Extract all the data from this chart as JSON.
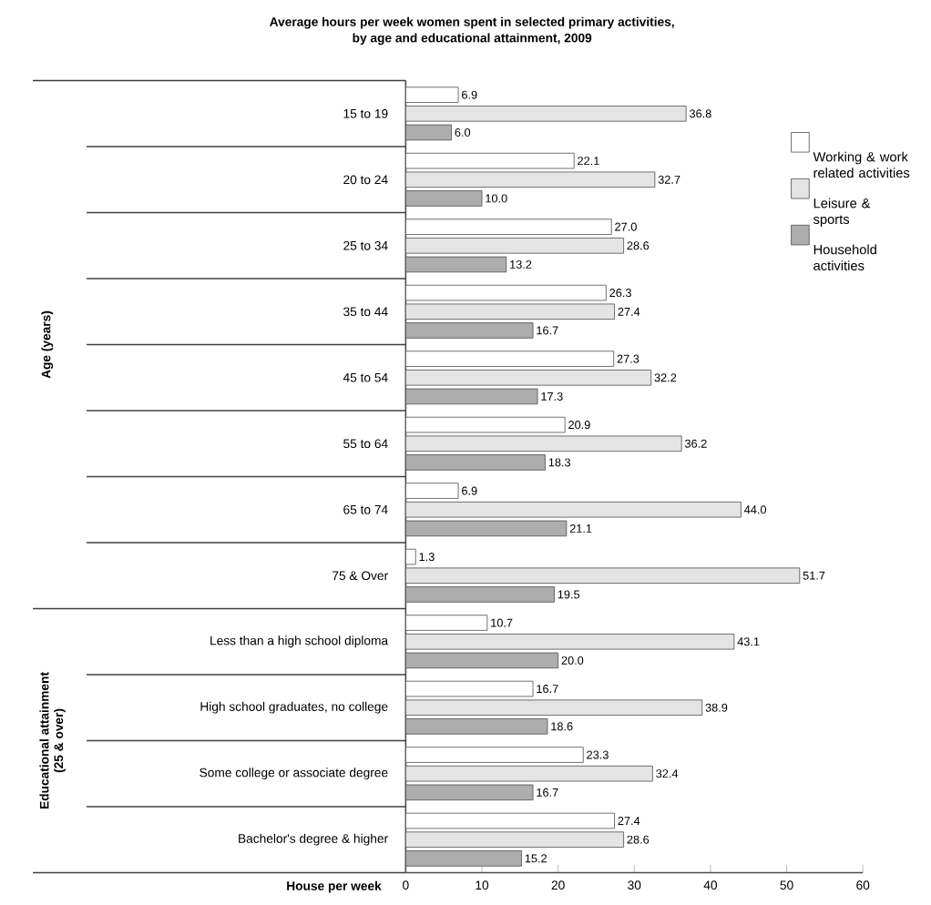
{
  "chart_data": {
    "type": "bar",
    "orientation": "horizontal",
    "title": "Average hours per week women spent in selected primary activities,\nby age and educational attainment, 2009",
    "xlabel": "House per week",
    "categories": [
      "15 to 19",
      "20 to 24",
      "25 to 34",
      "35 to 44",
      "45 to 54",
      "55 to 64",
      "65 to 74",
      "75 & Over",
      "Less than a high school diploma",
      "High school graduates, no college",
      "Some college or associate degree",
      "Bachelor's degree & higher"
    ],
    "annotations": [
      "Age (years)",
      "Educational attainment\n(25 & over)"
    ],
    "series": [
      {
        "name": "Working & work related activities",
        "color": "#ffffff",
        "values": [
          6.9,
          22.1,
          27.0,
          26.3,
          27.3,
          20.9,
          6.9,
          1.3,
          10.7,
          16.7,
          23.3,
          27.4
        ],
        "value_labels": [
          "6.9",
          "22.1",
          "27.0",
          "26.3",
          "27.3",
          "20.9",
          "6.9",
          "1.3",
          "10.7",
          "16.7",
          "23.3",
          "27.4"
        ]
      },
      {
        "name": "Leisure & sports",
        "color": "#e4e4e4",
        "values": [
          36.8,
          32.7,
          28.6,
          27.4,
          32.2,
          36.2,
          44.0,
          51.7,
          43.1,
          38.9,
          32.4,
          28.6
        ],
        "value_labels": [
          "36.8",
          "32.7",
          "28.6",
          "27.4",
          "32.2",
          "36.2",
          "44.0",
          "51.7",
          "43.1",
          "38.9",
          "32.4",
          "28.6"
        ]
      },
      {
        "name": "Household activities",
        "color": "#adadad",
        "values": [
          6.0,
          10.0,
          13.2,
          16.7,
          17.3,
          18.3,
          21.1,
          19.5,
          20.0,
          18.6,
          16.7,
          15.2
        ],
        "value_labels": [
          "6.0",
          "10.0",
          "13.2",
          "16.7",
          "17.3",
          "18.3",
          "21.1",
          "19.5",
          "20.0",
          "18.6",
          "16.7",
          "15.2"
        ]
      }
    ],
    "xlim": [
      0,
      60
    ],
    "xticks": [
      0,
      10,
      20,
      30,
      40,
      50,
      60
    ],
    "grid": false,
    "legend": "right"
  }
}
